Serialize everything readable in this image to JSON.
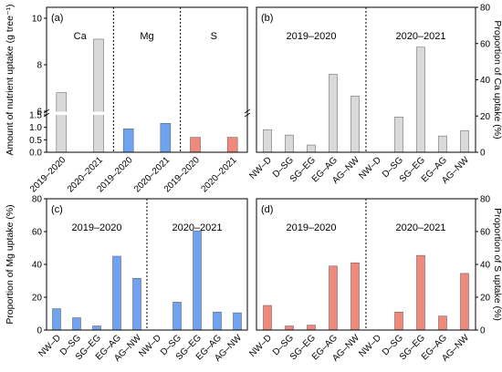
{
  "chart_data": [
    {
      "panel": "(a)",
      "type": "bar",
      "ylabel": "Amount of nutrient uptake (g tree⁻¹)",
      "y_broken_axis": true,
      "ylim_lower": [
        0,
        1.5
      ],
      "ylim_upper": [
        6,
        10
      ],
      "yticks_lower": [
        "0.0",
        "0.5",
        "1.0",
        "1.5"
      ],
      "yticks_upper": [
        "6",
        "8",
        "10"
      ],
      "groups": [
        "Ca",
        "Mg",
        "S"
      ],
      "categories": [
        "2019–2020",
        "2020–2021",
        "2019–2020",
        "2020–2021",
        "2019–2020",
        "2020–2021"
      ],
      "values": [
        6.8,
        9.1,
        0.94,
        1.16,
        0.6,
        0.6
      ],
      "colors": [
        "#d9d9d9",
        "#d9d9d9",
        "#6fa3f0",
        "#6fa3f0",
        "#f0897b",
        "#f0897b"
      ]
    },
    {
      "panel": "(b)",
      "type": "bar",
      "ylabel": "Proportion of Ca uptake (%)",
      "ylim": [
        0,
        80
      ],
      "yticks": [
        "0",
        "20",
        "40",
        "60",
        "80"
      ],
      "periods": [
        "2019–2020",
        "2020–2021"
      ],
      "categories": [
        "NW–D",
        "D–SG",
        "SG–EG",
        "EG–AG",
        "AG–NW",
        "NW–D",
        "D–SG",
        "SG–EG",
        "EG–AG",
        "AG–NW"
      ],
      "values": [
        12.5,
        9.5,
        4.0,
        43.0,
        31.0,
        0,
        19.5,
        58.0,
        9.0,
        12.0
      ],
      "color": "#d9d9d9"
    },
    {
      "panel": "(c)",
      "type": "bar",
      "ylabel": "Proportion of Mg uptake (%)",
      "ylim": [
        0,
        80
      ],
      "yticks": [
        "0",
        "20",
        "40",
        "60",
        "80"
      ],
      "periods": [
        "2019–2020",
        "2020–2021"
      ],
      "categories": [
        "NW–D",
        "D–SG",
        "SG–EG",
        "EG–AG",
        "AG–NW",
        "NW–D",
        "D–SG",
        "SG–EG",
        "EG–AG",
        "AG–NW"
      ],
      "values": [
        13.0,
        7.5,
        2.5,
        45.0,
        31.5,
        0,
        17.0,
        60.5,
        11.0,
        10.5
      ],
      "color": "#6fa3f0"
    },
    {
      "panel": "(d)",
      "type": "bar",
      "ylabel": "Proportion of S uptake (%)",
      "ylim": [
        0,
        80
      ],
      "yticks": [
        "0",
        "20",
        "40",
        "60",
        "80"
      ],
      "periods": [
        "2019–2020",
        "2020–2021"
      ],
      "categories": [
        "NW–D",
        "D–SG",
        "SG–EG",
        "EG–AG",
        "AG–NW",
        "NW–D",
        "D–SG",
        "SG–EG",
        "EG–AG",
        "AG–NW"
      ],
      "values": [
        15.0,
        2.5,
        3.0,
        39.0,
        41.0,
        0,
        11.0,
        45.5,
        8.5,
        34.5
      ],
      "color": "#f0897b"
    }
  ]
}
